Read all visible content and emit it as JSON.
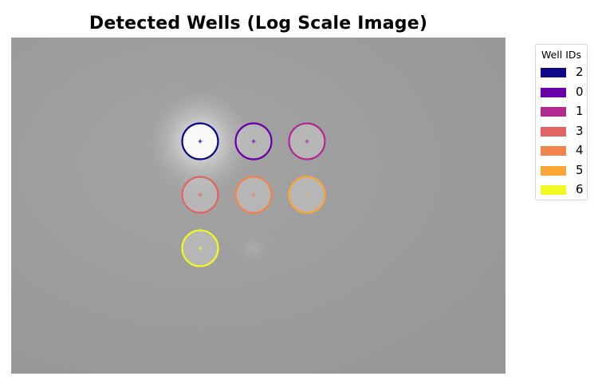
{
  "title": "Detected Wells (Log Scale Image)",
  "legend": {
    "title": "Well IDs",
    "items": [
      {
        "label": "2",
        "color": "#0d0887"
      },
      {
        "label": "0",
        "color": "#6a00a8"
      },
      {
        "label": "1",
        "color": "#b12a90"
      },
      {
        "label": "3",
        "color": "#e16462"
      },
      {
        "label": "4",
        "color": "#f2844b"
      },
      {
        "label": "5",
        "color": "#fca636"
      },
      {
        "label": "6",
        "color": "#f0f921"
      }
    ]
  },
  "chart_data": {
    "type": "scatter",
    "title": "Detected Wells (Log Scale Image)",
    "grid": false,
    "legend_placement": "outside-right",
    "wells": [
      {
        "id": "2",
        "row": 0,
        "col": 0,
        "color": "#0d0887",
        "brightness": "high"
      },
      {
        "id": "0",
        "row": 0,
        "col": 1,
        "color": "#6a00a8",
        "brightness": "medium"
      },
      {
        "id": "1",
        "row": 0,
        "col": 2,
        "color": "#b12a90",
        "brightness": "medium"
      },
      {
        "id": "3",
        "row": 1,
        "col": 0,
        "color": "#e16462",
        "brightness": "medium"
      },
      {
        "id": "4",
        "row": 1,
        "col": 1,
        "color": "#f2844b",
        "brightness": "medium"
      },
      {
        "id": "5",
        "row": 1,
        "col": 2,
        "color": "#fca636",
        "brightness": "medium"
      },
      {
        "id": "6",
        "row": 2,
        "col": 0,
        "color": "#f0f921",
        "brightness": "medium"
      }
    ]
  }
}
